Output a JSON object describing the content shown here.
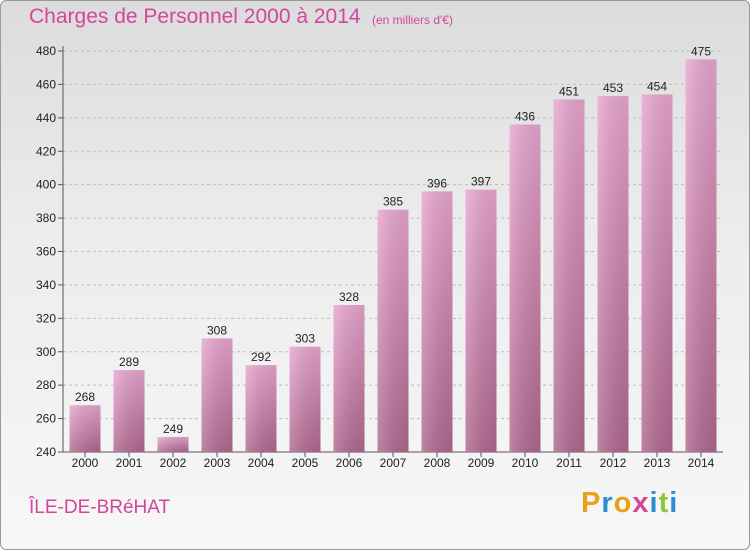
{
  "header": {
    "title": "Charges de Personnel 2000 à 2014",
    "subtitle": "(en milliers d'€)"
  },
  "footer": {
    "place": "ÎLE-DE-BRéHAT",
    "logo": {
      "letters": [
        "P",
        "r",
        "o",
        "x",
        "i",
        "t",
        "i"
      ],
      "colors": [
        "#e8a21a",
        "#2a8fd0",
        "#e8a21a",
        "#d2479a",
        "#2a8fd0",
        "#8cc63f",
        "#2a8fd0"
      ]
    }
  },
  "chart_data": {
    "type": "bar",
    "title": "Charges de Personnel 2000 à 2014",
    "subtitle": "(en milliers d'€)",
    "xlabel": "",
    "ylabel": "",
    "categories": [
      "2000",
      "2001",
      "2002",
      "2003",
      "2004",
      "2005",
      "2006",
      "2007",
      "2008",
      "2009",
      "2010",
      "2011",
      "2012",
      "2013",
      "2014"
    ],
    "values": [
      268,
      289,
      249,
      308,
      292,
      303,
      328,
      385,
      396,
      397,
      436,
      451,
      453,
      454,
      475
    ],
    "ylim": [
      240,
      480
    ],
    "yticks": [
      240,
      260,
      280,
      300,
      320,
      340,
      360,
      380,
      400,
      420,
      440,
      460,
      480
    ],
    "grid": true,
    "bar_color": "#d98cbc"
  }
}
